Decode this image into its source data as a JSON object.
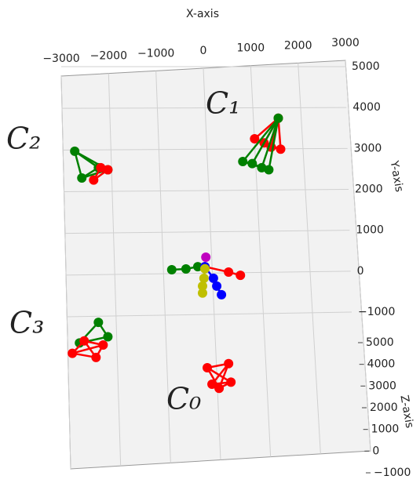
{
  "chart_data": {
    "type": "scatter3d",
    "xlabel": "X-axis",
    "ylabel": "Y-axis",
    "zlabel": "Z-axis",
    "xlim": [
      -3000,
      3000
    ],
    "ylim": [
      -1000,
      5000
    ],
    "zlim": [
      -1000,
      5000
    ],
    "xticks": [
      {
        "value": -3000,
        "label": "−3000"
      },
      {
        "value": -2000,
        "label": "−2000"
      },
      {
        "value": -1000,
        "label": "−1000"
      },
      0,
      1000,
      2000,
      3000
    ],
    "yticks": [
      {
        "value": -1000,
        "label": "−1000"
      },
      0,
      1000,
      2000,
      3000,
      4000,
      5000
    ],
    "zticks": [
      {
        "value": -1000,
        "label": "−1000"
      },
      0,
      1000,
      2000,
      3000,
      4000,
      5000
    ],
    "grid": true,
    "annotations": [
      "C₀",
      "C₁",
      "C₂",
      "C₃"
    ],
    "series": [
      {
        "color": "#ff0000",
        "connect": "star",
        "x": [
          1600,
          1100,
          1450,
          1650,
          1300
        ],
        "y": [
          3750,
          3250,
          3050,
          3000,
          3150
        ]
      },
      {
        "color": "#008000",
        "connect": "star",
        "x": [
          1600,
          850,
          1050,
          1250,
          1400
        ],
        "y": [
          3750,
          2700,
          2650,
          2550,
          2500
        ]
      },
      {
        "color": "#008000",
        "connect": "star",
        "x": [
          -2000,
          -2700,
          -2550,
          -2200
        ],
        "y": [
          2500,
          2950,
          2300,
          2550
        ]
      },
      {
        "color": "#ff0000",
        "connect": "star",
        "x": [
          -2000,
          -2300,
          -2150
        ],
        "y": [
          2500,
          2250,
          2550
        ]
      },
      {
        "color": "#008000",
        "connect": "star",
        "x": [
          -2200,
          -2000,
          -2600
        ],
        "y": [
          -1200,
          -1550,
          -1700
        ]
      },
      {
        "color": "#ff0000",
        "connect": "star",
        "x": [
          -2750,
          -2500,
          -2250,
          -2100
        ],
        "y": [
          -1950,
          -1650,
          -2050,
          -1750
        ]
      },
      {
        "color": "#ff0000",
        "connect": "star",
        "x": [
          350,
          100,
          550,
          200,
          600
        ],
        "y": [
          -2800,
          -2300,
          -2200,
          -2700,
          -2650
        ]
      },
      {
        "color": "#008000",
        "connect": "path",
        "x": [
          -650,
          -350,
          -100
        ],
        "y": [
          75,
          95,
          150
        ]
      },
      {
        "color": "#ff0000",
        "connect": "path",
        "x": [
          50,
          550,
          800
        ],
        "y": [
          150,
          20,
          -60
        ]
      },
      {
        "color": "#0000ff",
        "connect": "path",
        "x": [
          50,
          230,
          300,
          400
        ],
        "y": [
          150,
          -130,
          -320,
          -530
        ]
      },
      {
        "color": "#bfbf00",
        "connect": "path",
        "x": [
          50,
          30,
          0,
          0
        ],
        "y": [
          100,
          -130,
          -320,
          -490
        ]
      },
      {
        "color": "#bf00bf",
        "connect": "path",
        "x": [
          70
        ],
        "y": [
          380
        ]
      }
    ]
  }
}
